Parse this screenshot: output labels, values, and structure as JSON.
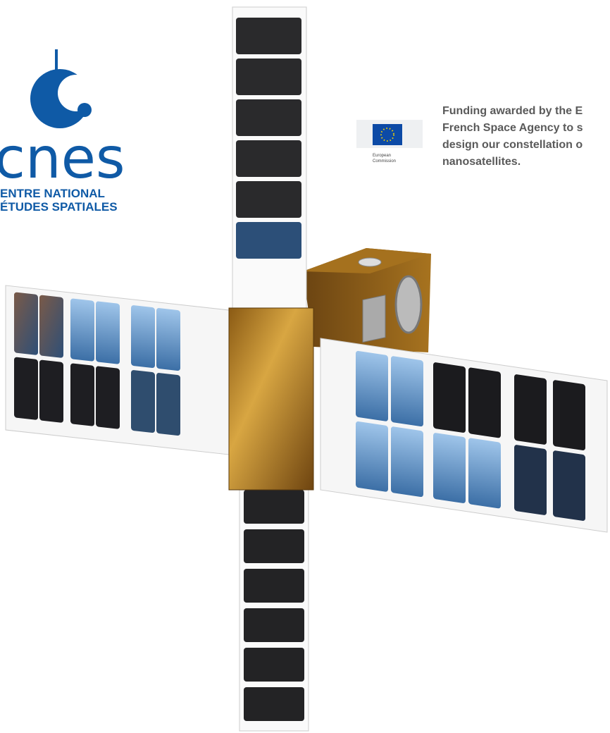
{
  "cnes_logo": {
    "wordmark": "cnes",
    "line1": "ENTRE NATIONAL",
    "line2": "ÉTUDES SPATIALES"
  },
  "eu_logo": {
    "line1": "European",
    "line2": "Commission"
  },
  "funding_text": {
    "lines": [
      "Funding awarded by the E",
      "French Space Agency to s",
      "design our constellation o",
      "nanosatellites."
    ]
  }
}
